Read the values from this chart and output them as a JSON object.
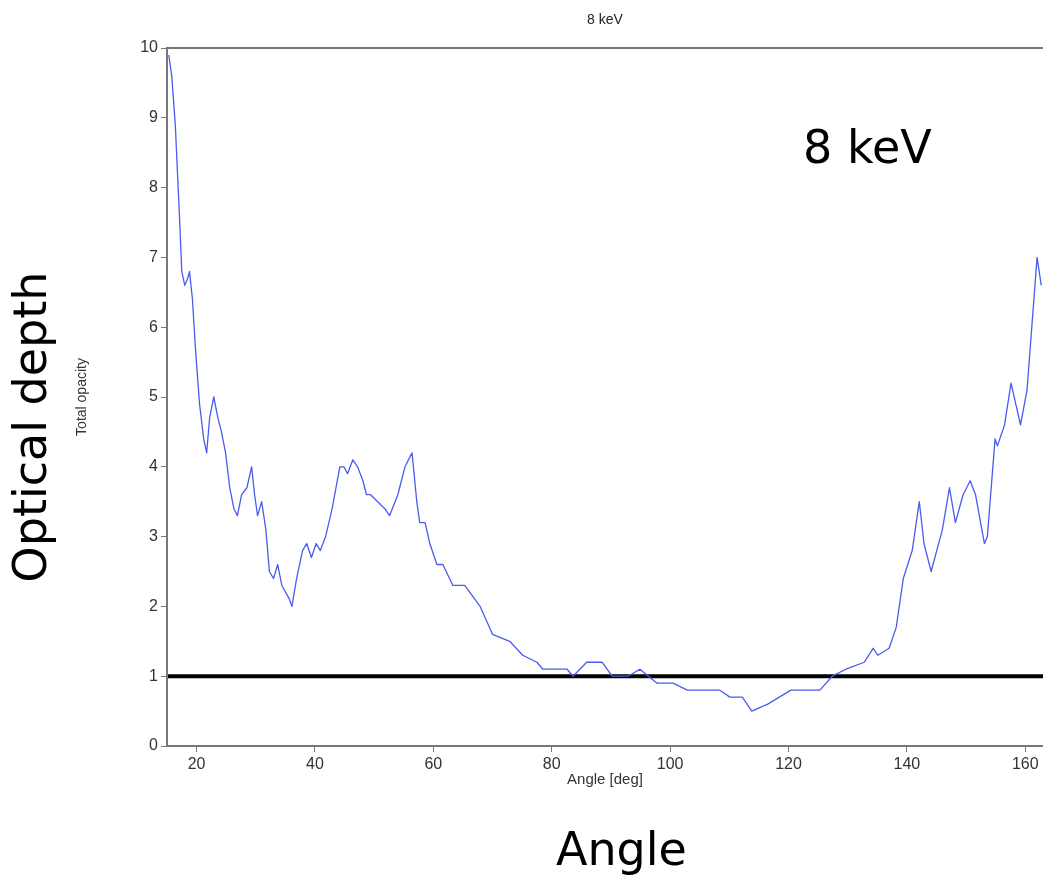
{
  "chart_data": {
    "type": "line",
    "title": "8 keV",
    "xlabel": "Angle [deg]",
    "ylabel": "Total opacity",
    "annotations": [
      "8 keV",
      "Optical depth",
      "Angle"
    ],
    "xlim": [
      15,
      163
    ],
    "xticks": [
      20,
      40,
      60,
      80,
      100,
      120,
      140,
      160
    ],
    "ylim": [
      0,
      10
    ],
    "yticks": [
      0,
      1,
      2,
      3,
      4,
      5,
      6,
      7,
      8,
      9,
      10
    ],
    "grid": false,
    "legend": false,
    "marker": "none",
    "line_style": "solid",
    "ref_lines": [
      {
        "axis": "y",
        "value": 1,
        "color": "#000000"
      }
    ],
    "series": [
      {
        "color": "#4a5cf0",
        "x": [
          15.3,
          15.8,
          16.4,
          17.1,
          17.5,
          18,
          18.5,
          18.8,
          19.3,
          19.8,
          20.5,
          21.2,
          21.7,
          22.2,
          22.9,
          23.6,
          24.2,
          24.9,
          25.6,
          26.3,
          26.9,
          27.6,
          28.5,
          29.3,
          29.8,
          30.3,
          31,
          31.7,
          32.3,
          33,
          33.7,
          34.4,
          35.7,
          36.1,
          36.9,
          37.9,
          38.6,
          39.4,
          40.2,
          40.9,
          41.8,
          42.9,
          44.2,
          44.9,
          45.5,
          46.4,
          47.2,
          48.1,
          48.7,
          49.4,
          50.6,
          51.8,
          52.6,
          54,
          55.2,
          56.4,
          57.2,
          57.7,
          58.6,
          59.4,
          60.6,
          61.6,
          63.3,
          65.3,
          67.9,
          70,
          72.9,
          75.1,
          77.5,
          78.5,
          82.6,
          83.6,
          85.9,
          87.3,
          88.5,
          90.2,
          92.9,
          94.9,
          97.8,
          100.5,
          102.9,
          107.2,
          108.4,
          110.1,
          112.2,
          113.8,
          116.5,
          120.4,
          124.3,
          125.3,
          127.4,
          129.7,
          132.8,
          134.3,
          135.1,
          137,
          138.2,
          139.4,
          140.9,
          142.1,
          142.9,
          144.1,
          146,
          147.2,
          148.2,
          149.5,
          150.7,
          151.6,
          153.1,
          153.6,
          154.9,
          155.3,
          156.5,
          157.6,
          159.2,
          160.3,
          162,
          162.7
        ],
        "values": [
          9.9,
          9.6,
          8.9,
          7.6,
          6.8,
          6.6,
          6.7,
          6.8,
          6.4,
          5.7,
          4.9,
          4.4,
          4.2,
          4.7,
          5.0,
          4.7,
          4.5,
          4.2,
          3.7,
          3.4,
          3.3,
          3.6,
          3.7,
          4.0,
          3.6,
          3.3,
          3.5,
          3.1,
          2.5,
          2.4,
          2.6,
          2.3,
          2.1,
          2.0,
          2.4,
          2.8,
          2.9,
          2.7,
          2.9,
          2.8,
          3.0,
          3.4,
          4.0,
          4.0,
          3.9,
          4.1,
          4.0,
          3.8,
          3.6,
          3.6,
          3.5,
          3.4,
          3.3,
          3.6,
          4.0,
          4.2,
          3.5,
          3.2,
          3.2,
          2.9,
          2.6,
          2.6,
          2.3,
          2.3,
          2.0,
          1.6,
          1.5,
          1.3,
          1.2,
          1.1,
          1.1,
          1.0,
          1.2,
          1.2,
          1.2,
          1.0,
          1.0,
          1.1,
          0.9,
          0.9,
          0.8,
          0.8,
          0.8,
          0.7,
          0.7,
          0.5,
          0.6,
          0.8,
          0.8,
          0.8,
          1.0,
          1.1,
          1.2,
          1.4,
          1.3,
          1.4,
          1.7,
          2.4,
          2.8,
          3.5,
          2.9,
          2.5,
          3.1,
          3.7,
          3.2,
          3.6,
          3.8,
          3.6,
          2.9,
          3.0,
          4.4,
          4.3,
          4.6,
          5.2,
          4.6,
          5.1,
          7.0,
          6.6
        ]
      }
    ]
  }
}
